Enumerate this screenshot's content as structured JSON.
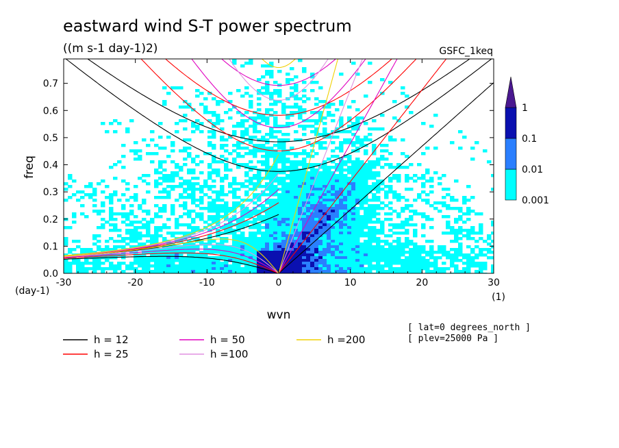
{
  "chart_data": {
    "type": "heatmap",
    "title": "eastward wind S-T power spectrum",
    "subtitle": "((m s-1 day-1)2)",
    "source_label": "GSFC_1keq",
    "xlabel": "wvn",
    "ylabel": "freq",
    "x_unit_label": "(1)",
    "y_unit_label": "(day-1)",
    "xlim": [
      -30,
      30
    ],
    "ylim": [
      0,
      0.79
    ],
    "x_ticks": [
      "-30",
      "-20",
      "-10",
      "0",
      "10",
      "20",
      "30"
    ],
    "y_ticks": [
      "0.0",
      "0.1",
      "0.2",
      "0.3",
      "0.4",
      "0.5",
      "0.6",
      "0.7"
    ],
    "colorbar": {
      "levels": [
        "0.001",
        "0.01",
        "0.1",
        "1"
      ],
      "colors": [
        "#00ffff",
        "#2a7fff",
        "#0a10b0",
        "#4a1890"
      ]
    },
    "dispersion_curves": [
      {
        "label": "h = 12",
        "h": 12,
        "color": "#000000"
      },
      {
        "label": "h = 25",
        "h": 25,
        "color": "#ff0000"
      },
      {
        "label": "h = 50",
        "h": 50,
        "color": "#e000c0"
      },
      {
        "label": "h =100",
        "h": 100,
        "color": "#e090e0"
      },
      {
        "label": "h =200",
        "h": 200,
        "color": "#f0d000"
      }
    ],
    "annotations": [
      "[ lat=0 degrees_north ]",
      "[ plev=25000 Pa ]"
    ]
  }
}
